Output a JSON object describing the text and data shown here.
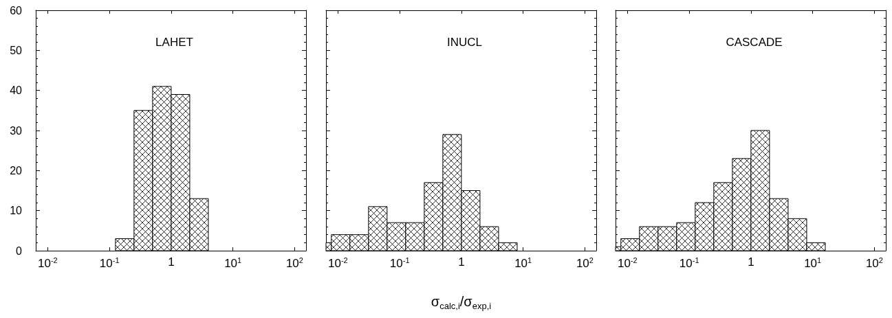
{
  "chart_data": [
    {
      "type": "histogram",
      "title": "LAHET",
      "color": "#000000",
      "log": "x",
      "bins": [
        0.125,
        0.25,
        0.5,
        1,
        2,
        4
      ],
      "values": [
        3,
        35,
        41,
        39,
        13
      ],
      "xlim": [
        0.0064,
        153
      ],
      "xticks": [
        {
          "value": 0.01,
          "label": "10$^{-2}$"
        },
        {
          "value": 0.1,
          "label": "10$^{-1}$"
        },
        {
          "value": 1,
          "label": "1"
        },
        {
          "value": 10,
          "label": "10$^{1}$"
        },
        {
          "value": 100,
          "label": "10$^{2}$"
        }
      ],
      "ylim": [
        0,
        60
      ],
      "yticks": [
        0,
        10,
        20,
        30,
        40,
        50,
        60
      ],
      "grid": false
    },
    {
      "type": "histogram",
      "title": "INUCL",
      "color": "#000000",
      "log": "x",
      "xlabel": "σ$_{calc,i}$/σ$_{exp,i}$",
      "bins": [
        0.0064,
        0.0078125,
        0.015625,
        0.03125,
        0.0625,
        0.125,
        0.25,
        0.5,
        1,
        2,
        4,
        8
      ],
      "values": [
        2,
        4,
        4,
        11,
        7,
        7,
        17,
        29,
        15,
        6,
        2
      ],
      "xlim": [
        0.0064,
        153
      ],
      "xticks": [
        {
          "value": 0.01,
          "label": "10$^{-2}$"
        },
        {
          "value": 0.1,
          "label": "10$^{-1}$"
        },
        {
          "value": 1,
          "label": "1"
        },
        {
          "value": 10,
          "label": "10$^{1}$"
        },
        {
          "value": 100,
          "label": "10$^{2}$"
        }
      ],
      "ylim": [
        0,
        60
      ],
      "yticks": [
        0,
        10,
        20,
        30,
        40,
        50,
        60
      ],
      "tick_labels": "x",
      "grid": false
    },
    {
      "type": "histogram",
      "title": "CASCADE",
      "color": "#000000",
      "log": "x",
      "bins": [
        0.0064,
        0.0078125,
        0.015625,
        0.03125,
        0.0625,
        0.125,
        0.25,
        0.5,
        1,
        2,
        4,
        8,
        16
      ],
      "values": [
        1,
        3,
        6,
        6,
        7,
        12,
        17,
        23,
        30,
        13,
        8,
        2
      ],
      "xlim": [
        0.0064,
        153
      ],
      "xticks": [
        {
          "value": 0.01,
          "label": "10$^{-2}$"
        },
        {
          "value": 0.1,
          "label": "10$^{-1}$"
        },
        {
          "value": 1,
          "label": "1"
        },
        {
          "value": 10,
          "label": "10$^{1}$"
        },
        {
          "value": 100,
          "label": "10$^{2}$"
        }
      ],
      "ylim": [
        0,
        60
      ],
      "yticks": [
        0,
        10,
        20,
        30,
        40,
        50,
        60
      ],
      "tick_labels": "x",
      "grid": false
    }
  ]
}
